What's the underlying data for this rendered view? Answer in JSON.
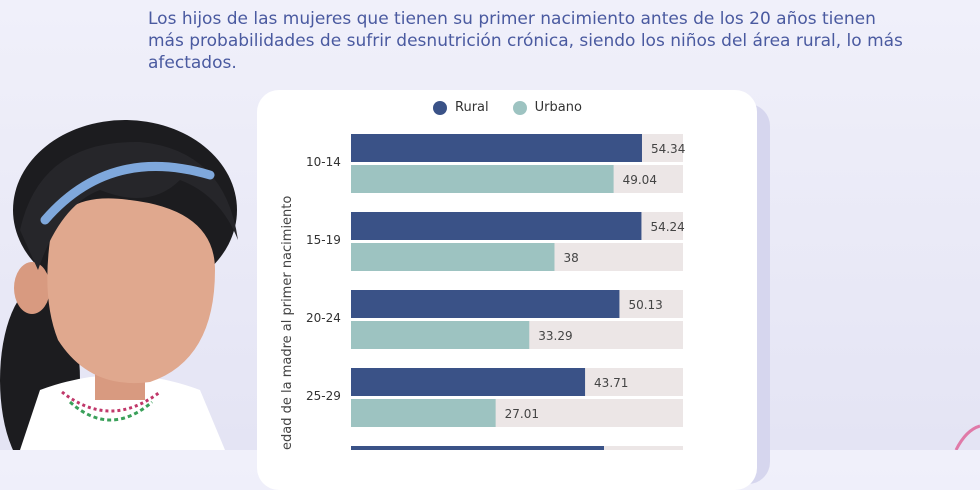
{
  "headline": "Los hijos de las mujeres que tienen su primer nacimiento antes de los 20 años tienen más probabilidades de sufrir desnutrición crónica, siendo los niños del área rural, lo más afectados.",
  "colors": {
    "rural": "#3a5287",
    "urbano": "#9dc3c1",
    "track": "#ece6e6",
    "headline": "#4a5aa0"
  },
  "chart_data": {
    "type": "bar",
    "orientation": "horizontal",
    "title": "",
    "ylabel": "edad de la madre al primer nacimiento",
    "xlabel": "",
    "xlim": [
      0,
      62
    ],
    "categories": [
      "10-14",
      "15-19",
      "20-24",
      "25-29"
    ],
    "series": [
      {
        "name": "Rural",
        "values": [
          54.34,
          54.24,
          50.13,
          43.71
        ]
      },
      {
        "name": "Urbano",
        "values": [
          49.04,
          38,
          33.29,
          27.01
        ]
      }
    ],
    "value_labels": {
      "Rural": [
        "54.34",
        "54.24",
        "50.13",
        "43.71"
      ],
      "Urbano": [
        "49.04",
        "38",
        "33.29",
        "27.01"
      ]
    },
    "legend_position": "top",
    "grid": false
  }
}
